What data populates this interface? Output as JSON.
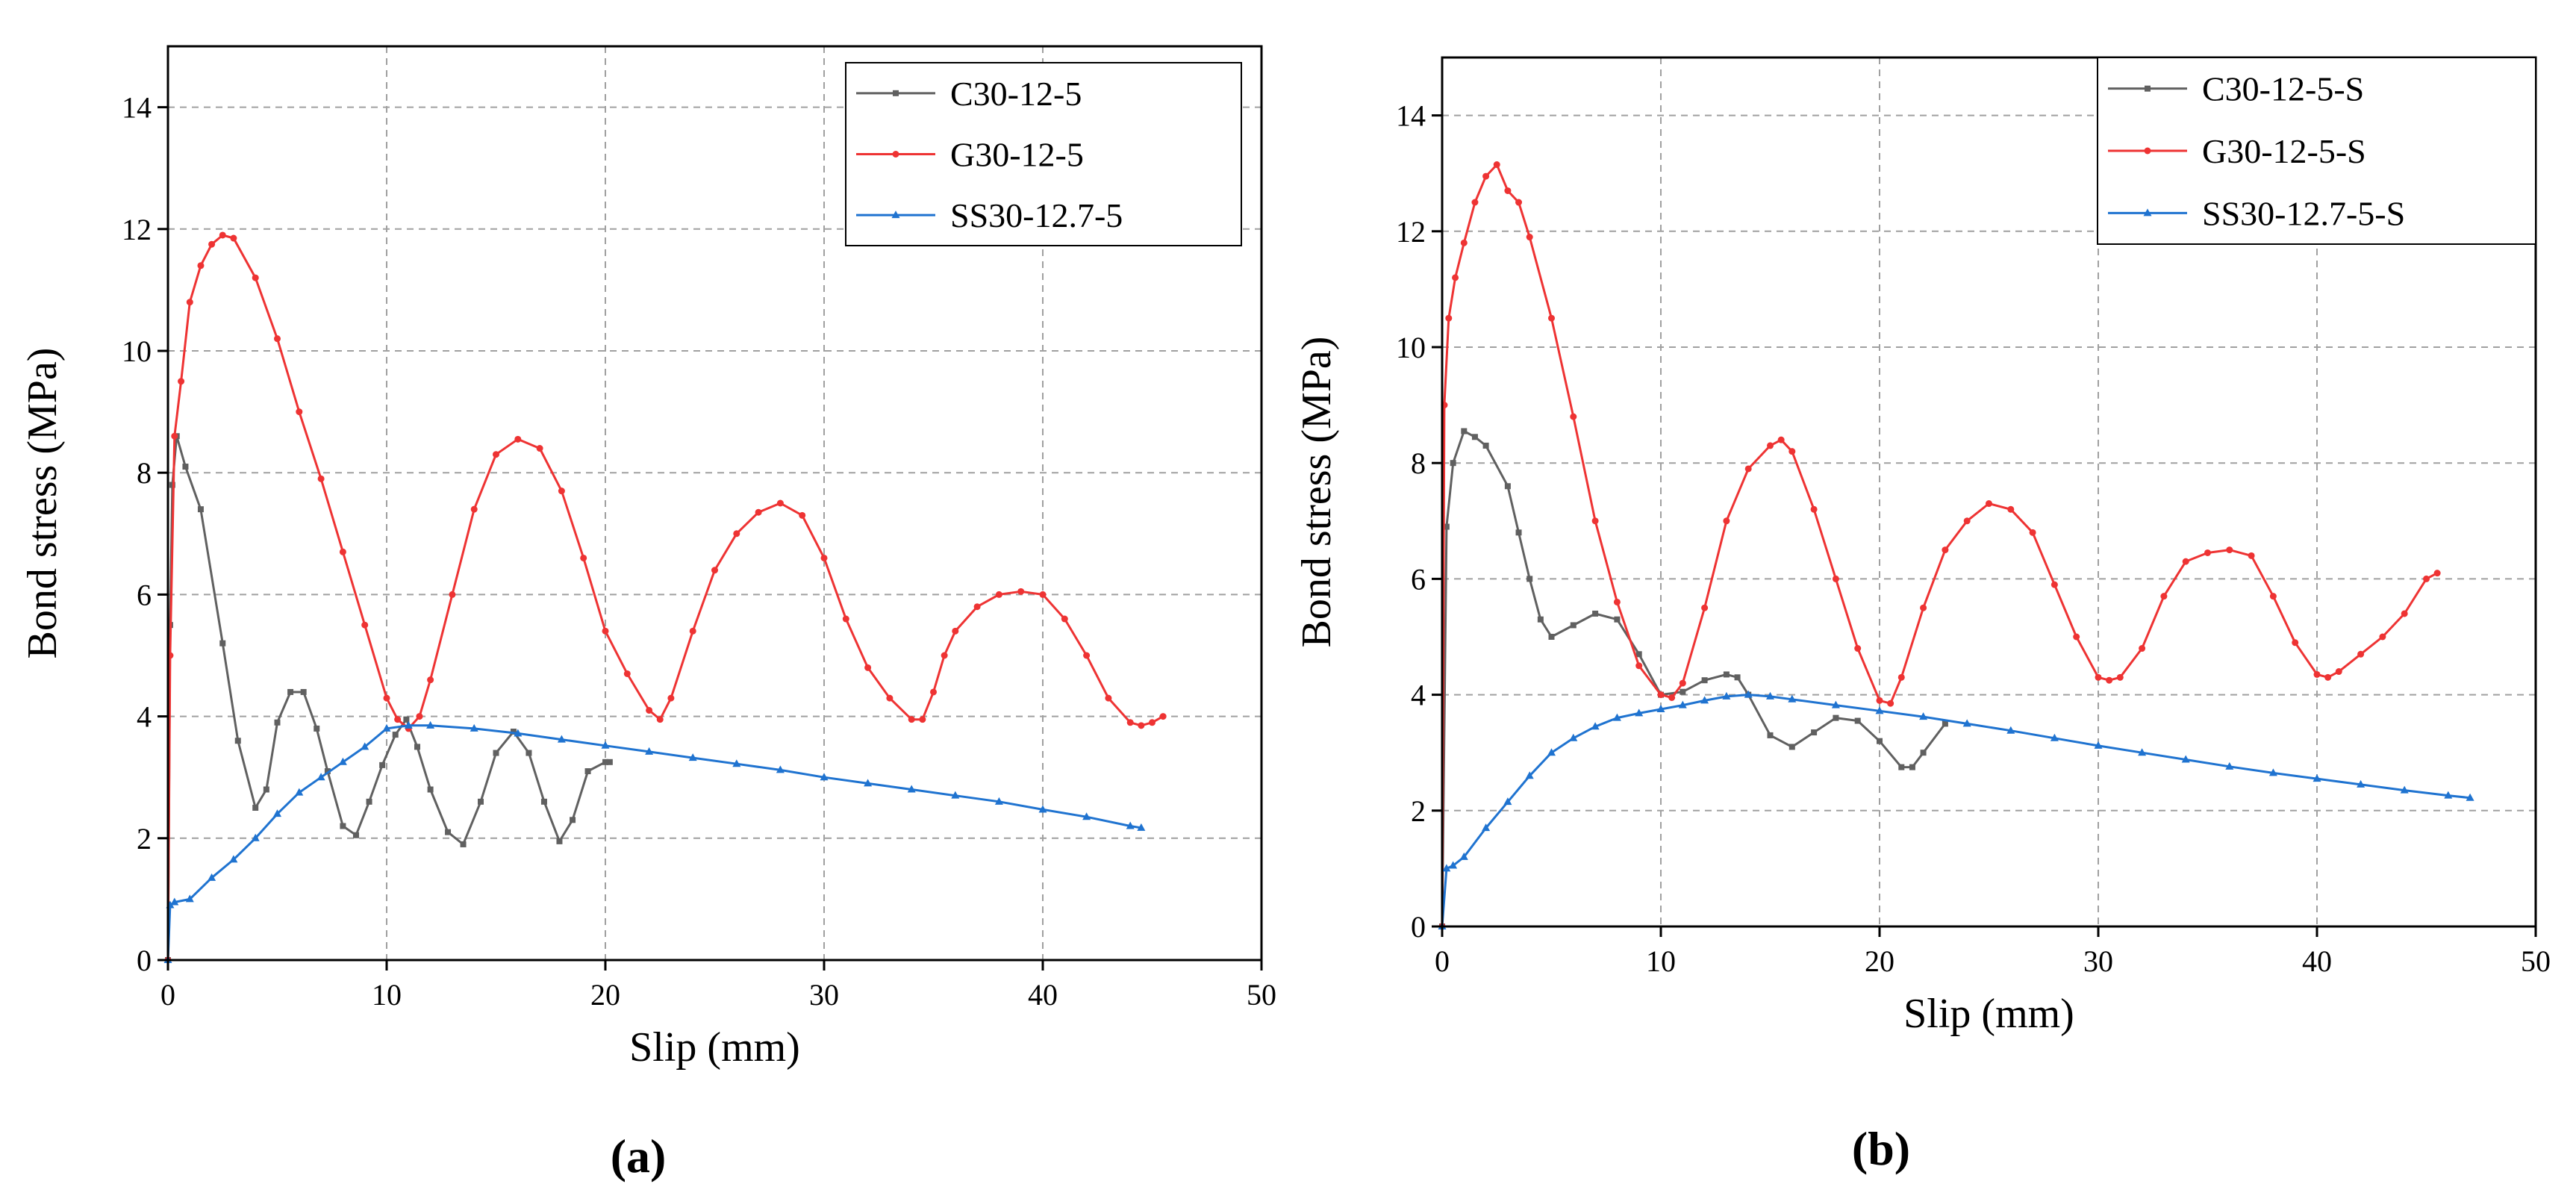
{
  "figure": {
    "panel_labels": {
      "a": "(a)",
      "b": "(b)"
    }
  },
  "chart_data": [
    {
      "panel": "a",
      "type": "line",
      "title": "",
      "panel_label": "(a)",
      "xlabel": "Slip (mm)",
      "ylabel": "Bond stress (MPa)",
      "xlim": [
        0,
        50
      ],
      "ylim": [
        0,
        15
      ],
      "xticks": [
        0,
        10,
        20,
        30,
        40,
        50
      ],
      "yticks": [
        0,
        2,
        4,
        6,
        8,
        10,
        12,
        14
      ],
      "grid": true,
      "legend_position": "top-right",
      "series": [
        {
          "name": "C30-12-5",
          "color": "#606060",
          "marker": "square",
          "x": [
            0,
            0.1,
            0.2,
            0.4,
            0.8,
            1.5,
            2.5,
            3.2,
            4.0,
            4.5,
            5.0,
            5.6,
            6.2,
            6.8,
            7.3,
            8.0,
            8.6,
            9.2,
            9.8,
            10.4,
            10.9,
            11.4,
            12.0,
            12.8,
            13.5,
            14.3,
            15.0,
            15.8,
            16.5,
            17.2,
            17.9,
            18.5,
            19.2,
            20.0,
            20.2
          ],
          "values": [
            0,
            5.5,
            7.8,
            8.6,
            8.1,
            7.4,
            5.2,
            3.6,
            2.5,
            2.8,
            3.9,
            4.4,
            4.4,
            3.8,
            3.1,
            2.2,
            2.05,
            2.6,
            3.2,
            3.7,
            3.95,
            3.5,
            2.8,
            2.1,
            1.9,
            2.6,
            3.4,
            3.75,
            3.4,
            2.6,
            1.95,
            2.3,
            3.1,
            3.25,
            3.25
          ]
        },
        {
          "name": "G30-12-5",
          "color": "#ee3333",
          "marker": "circle",
          "x": [
            0,
            0.1,
            0.3,
            0.6,
            1.0,
            1.5,
            2.0,
            2.5,
            3.0,
            4.0,
            5.0,
            6.0,
            7.0,
            8.0,
            9.0,
            10.0,
            10.5,
            11.0,
            11.5,
            12.0,
            13.0,
            14.0,
            15.0,
            16.0,
            17.0,
            18.0,
            19.0,
            20.0,
            21.0,
            22.0,
            22.5,
            23.0,
            24.0,
            25.0,
            26.0,
            27.0,
            28.0,
            29.0,
            30.0,
            31.0,
            32.0,
            33.0,
            34.0,
            34.5,
            35.0,
            35.5,
            36.0,
            37.0,
            38.0,
            39.0,
            40.0,
            41.0,
            42.0,
            43.0,
            44.0,
            44.5,
            45.0,
            45.5
          ],
          "values": [
            0,
            5.0,
            8.6,
            9.5,
            10.8,
            11.4,
            11.75,
            11.9,
            11.85,
            11.2,
            10.2,
            9.0,
            7.9,
            6.7,
            5.5,
            4.3,
            3.95,
            3.8,
            4.0,
            4.6,
            6.0,
            7.4,
            8.3,
            8.55,
            8.4,
            7.7,
            6.6,
            5.4,
            4.7,
            4.1,
            3.95,
            4.3,
            5.4,
            6.4,
            7.0,
            7.35,
            7.5,
            7.3,
            6.6,
            5.6,
            4.8,
            4.3,
            3.95,
            3.95,
            4.4,
            5.0,
            5.4,
            5.8,
            6.0,
            6.05,
            6.0,
            5.6,
            5.0,
            4.3,
            3.9,
            3.85,
            3.9,
            4.0
          ]
        },
        {
          "name": "SS30-12.7-5",
          "color": "#1f73d0",
          "marker": "triangle",
          "x": [
            0,
            0.1,
            0.3,
            1.0,
            2.0,
            3.0,
            4.0,
            5.0,
            6.0,
            7.0,
            8.0,
            9.0,
            10.0,
            11.0,
            12.0,
            14.0,
            16.0,
            18.0,
            20.0,
            22.0,
            24.0,
            26.0,
            28.0,
            30.0,
            32.0,
            34.0,
            36.0,
            38.0,
            40.0,
            42.0,
            44.0,
            44.5
          ],
          "values": [
            0,
            0.9,
            0.95,
            1.0,
            1.35,
            1.65,
            2.0,
            2.4,
            2.75,
            3.0,
            3.25,
            3.5,
            3.8,
            3.85,
            3.85,
            3.8,
            3.72,
            3.62,
            3.52,
            3.42,
            3.32,
            3.22,
            3.12,
            3.0,
            2.9,
            2.8,
            2.7,
            2.6,
            2.47,
            2.35,
            2.2,
            2.17
          ]
        }
      ]
    },
    {
      "panel": "b",
      "type": "line",
      "title": "",
      "panel_label": "(b)",
      "xlabel": "Slip (mm)",
      "ylabel": "Bond stress (MPa)",
      "xlim": [
        0,
        50
      ],
      "ylim": [
        0,
        15
      ],
      "xticks": [
        0,
        10,
        20,
        30,
        40,
        50
      ],
      "yticks": [
        0,
        2,
        4,
        6,
        8,
        10,
        12,
        14
      ],
      "grid": true,
      "legend_position": "top-right",
      "series": [
        {
          "name": "C30-12-5-S",
          "color": "#606060",
          "marker": "square",
          "x": [
            0,
            0.2,
            0.5,
            1.0,
            1.5,
            2.0,
            3.0,
            3.5,
            4.0,
            4.5,
            5.0,
            6.0,
            7.0,
            8.0,
            9.0,
            10.0,
            11.0,
            12.0,
            13.0,
            13.5,
            14.0,
            15.0,
            16.0,
            17.0,
            18.0,
            19.0,
            20.0,
            21.0,
            21.5,
            22.0,
            23.0
          ],
          "values": [
            0,
            6.9,
            8.0,
            8.55,
            8.45,
            8.3,
            7.6,
            6.8,
            6.0,
            5.3,
            5.0,
            5.2,
            5.4,
            5.3,
            4.7,
            4.0,
            4.05,
            4.25,
            4.35,
            4.3,
            4.0,
            3.3,
            3.1,
            3.35,
            3.6,
            3.55,
            3.2,
            2.75,
            2.75,
            3.0,
            3.5
          ]
        },
        {
          "name": "G30-12-5-S",
          "color": "#ee3333",
          "marker": "circle",
          "x": [
            0,
            0.1,
            0.3,
            0.6,
            1.0,
            1.5,
            2.0,
            2.5,
            3.0,
            3.5,
            4.0,
            5.0,
            6.0,
            7.0,
            8.0,
            9.0,
            10.0,
            10.5,
            11.0,
            12.0,
            13.0,
            14.0,
            15.0,
            15.5,
            16.0,
            17.0,
            18.0,
            19.0,
            20.0,
            20.5,
            21.0,
            22.0,
            23.0,
            24.0,
            25.0,
            26.0,
            27.0,
            28.0,
            29.0,
            30.0,
            30.5,
            31.0,
            32.0,
            33.0,
            34.0,
            35.0,
            36.0,
            37.0,
            38.0,
            39.0,
            40.0,
            40.5,
            41.0,
            42.0,
            43.0,
            44.0,
            45.0,
            45.5
          ],
          "values": [
            0,
            9.0,
            10.5,
            11.2,
            11.8,
            12.5,
            12.95,
            13.15,
            12.7,
            12.5,
            11.9,
            10.5,
            8.8,
            7.0,
            5.6,
            4.5,
            4.0,
            3.95,
            4.2,
            5.5,
            7.0,
            7.9,
            8.3,
            8.4,
            8.2,
            7.2,
            6.0,
            4.8,
            3.9,
            3.85,
            4.3,
            5.5,
            6.5,
            7.0,
            7.3,
            7.2,
            6.8,
            5.9,
            5.0,
            4.3,
            4.25,
            4.3,
            4.8,
            5.7,
            6.3,
            6.45,
            6.5,
            6.4,
            5.7,
            4.9,
            4.35,
            4.3,
            4.4,
            4.7,
            5.0,
            5.4,
            6.0,
            6.1
          ]
        },
        {
          "name": "SS30-12.7-5-S",
          "color": "#1f73d0",
          "marker": "triangle",
          "x": [
            0,
            0.2,
            0.5,
            1.0,
            2.0,
            3.0,
            4.0,
            5.0,
            6.0,
            7.0,
            8.0,
            9.0,
            10.0,
            11.0,
            12.0,
            13.0,
            14.0,
            15.0,
            16.0,
            18.0,
            20.0,
            22.0,
            24.0,
            26.0,
            28.0,
            30.0,
            32.0,
            34.0,
            36.0,
            38.0,
            40.0,
            42.0,
            44.0,
            46.0,
            47.0
          ],
          "values": [
            0,
            1.0,
            1.05,
            1.2,
            1.7,
            2.15,
            2.6,
            3.0,
            3.25,
            3.45,
            3.6,
            3.68,
            3.75,
            3.82,
            3.9,
            3.97,
            4.0,
            3.97,
            3.92,
            3.82,
            3.72,
            3.62,
            3.5,
            3.38,
            3.25,
            3.12,
            3.0,
            2.88,
            2.76,
            2.65,
            2.55,
            2.45,
            2.35,
            2.26,
            2.22
          ]
        }
      ]
    }
  ]
}
